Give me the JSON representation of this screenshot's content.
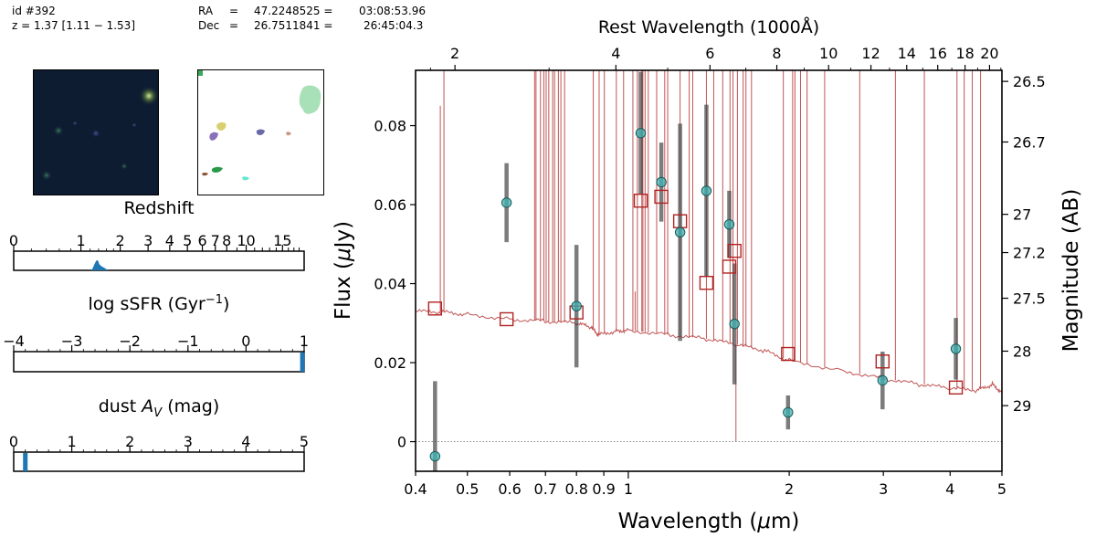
{
  "header": {
    "id_line": "id #392",
    "z_line": "z = 1.37 [1.11 − 1.53]",
    "ra_label": "RA",
    "ra_eq": "=",
    "ra_deg": "47.2248525 =",
    "ra_hms": "03:08:53.96",
    "dec_label": "Dec",
    "dec_eq": "=",
    "dec_deg": "26.7511841 =",
    "dec_dms": "26:45:04.3"
  },
  "thumbnails": {
    "image": {
      "background": "#0c1a30"
    },
    "segmentation": {
      "background": "#ffffff"
    }
  },
  "posteriors": [
    {
      "title": "Redshift",
      "scale": "log(1+z)",
      "ticks": [
        "0",
        "1",
        "2",
        "3",
        "4",
        "5",
        "6",
        "7",
        "8",
        "10",
        "15"
      ],
      "tick_values": [
        0,
        1,
        2,
        3,
        4,
        5,
        6,
        7,
        8,
        10,
        15
      ],
      "minor_values": [
        9,
        11,
        12,
        13,
        14,
        16,
        17,
        18
      ],
      "range": [
        0,
        19
      ],
      "peak": 1.37,
      "color": "#1f77b4"
    },
    {
      "title": "log sSFR (Gyr",
      "title_sup": "−1",
      "title_close": ")",
      "scale": "linear",
      "ticks": [
        "−4",
        "−3",
        "−2",
        "−1",
        "0",
        "1"
      ],
      "tick_values": [
        -4,
        -3,
        -2,
        -1,
        0,
        1
      ],
      "range": [
        -4,
        1
      ],
      "peak": 0.97,
      "color": "#1f77b4"
    },
    {
      "title": "dust ",
      "title_italic": "A",
      "title_sub": "V",
      "title_close": " (mag)",
      "scale": "linear",
      "ticks": [
        "0",
        "1",
        "2",
        "3",
        "4",
        "5"
      ],
      "tick_values": [
        0,
        1,
        2,
        3,
        4,
        5
      ],
      "range": [
        0,
        5
      ],
      "peak": 0.2,
      "color": "#1f77b4"
    }
  ],
  "chart_data": {
    "type": "scatter",
    "xlabel_text": "Wavelength (",
    "xlabel_unit": "μ",
    "xlabel_end": "m)",
    "ylabel_text": "Flux (",
    "ylabel_unit": "μ",
    "ylabel_end": "Jy)",
    "y2label": "Magnitude (AB)",
    "top_label": "Rest Wavelength (1000Å)",
    "x_scale": "log",
    "xlim": [
      0.4,
      5.0
    ],
    "ylim": [
      -0.0075,
      0.094
    ],
    "x_ticks": [
      0.4,
      0.5,
      0.6,
      0.7,
      0.8,
      0.9,
      1,
      2,
      3,
      4,
      5
    ],
    "x_tick_labels": [
      "0.4",
      "0.5",
      "0.6",
      "0.7",
      "0.8",
      "0.9",
      "1",
      "2",
      "3",
      "4",
      "5"
    ],
    "y_ticks": [
      0,
      0.02,
      0.04,
      0.06,
      0.08
    ],
    "y_tick_labels": [
      "0",
      "0.02",
      "0.04",
      "0.06",
      "0.08"
    ],
    "top_ticks": [
      2,
      4,
      6,
      8,
      10,
      12,
      14,
      16,
      18,
      20
    ],
    "top_tick_labels": [
      "2",
      "4",
      "6",
      "8",
      "10",
      "12",
      "14",
      "16",
      "18",
      "20"
    ],
    "mag_ticks": [
      26.5,
      26.7,
      27,
      27.2,
      27.5,
      28,
      29
    ],
    "mag_tick_labels": [
      "26.5",
      "26.7",
      "27",
      "27.2",
      "27.5",
      "28",
      "29"
    ],
    "redshift": 1.37,
    "observed": {
      "name": "",
      "color": "#40b0b0",
      "points": [
        {
          "x": 0.435,
          "y": -0.0037,
          "err": 0.019
        },
        {
          "x": 0.592,
          "y": 0.0605,
          "err": 0.01
        },
        {
          "x": 0.8,
          "y": 0.0343,
          "err": 0.0155
        },
        {
          "x": 1.055,
          "y": 0.0781,
          "err": 0.0155
        },
        {
          "x": 1.153,
          "y": 0.0657,
          "err": 0.01
        },
        {
          "x": 1.25,
          "y": 0.053,
          "err": 0.0275
        },
        {
          "x": 1.4,
          "y": 0.0635,
          "err": 0.0218
        },
        {
          "x": 1.545,
          "y": 0.055,
          "err": 0.0085
        },
        {
          "x": 1.58,
          "y": 0.0298,
          "err": 0.0153
        },
        {
          "x": 1.99,
          "y": 0.0074,
          "err": 0.0043
        },
        {
          "x": 2.99,
          "y": 0.0155,
          "err": 0.0073
        },
        {
          "x": 4.1,
          "y": 0.0235,
          "err": 0.0078
        }
      ]
    },
    "model_photometry": {
      "name": "",
      "color": "#b22222",
      "points": [
        {
          "x": 0.435,
          "y": 0.0337
        },
        {
          "x": 0.592,
          "y": 0.031
        },
        {
          "x": 0.8,
          "y": 0.0327
        },
        {
          "x": 1.055,
          "y": 0.061
        },
        {
          "x": 1.153,
          "y": 0.062
        },
        {
          "x": 1.25,
          "y": 0.0558
        },
        {
          "x": 1.4,
          "y": 0.0402
        },
        {
          "x": 1.545,
          "y": 0.0443
        },
        {
          "x": 1.58,
          "y": 0.0483
        },
        {
          "x": 1.99,
          "y": 0.0222
        },
        {
          "x": 2.99,
          "y": 0.0203
        },
        {
          "x": 4.1,
          "y": 0.0137
        }
      ]
    },
    "model_spectrum": {
      "name": "",
      "color": "#c05555",
      "continuum": [
        {
          "x": 0.4,
          "y": 0.033
        },
        {
          "x": 0.45,
          "y": 0.0328
        },
        {
          "x": 0.5,
          "y": 0.0322
        },
        {
          "x": 0.6,
          "y": 0.031
        },
        {
          "x": 0.7,
          "y": 0.0305
        },
        {
          "x": 0.8,
          "y": 0.03
        },
        {
          "x": 0.85,
          "y": 0.029
        },
        {
          "x": 0.88,
          "y": 0.027
        },
        {
          "x": 0.95,
          "y": 0.028
        },
        {
          "x": 1.0,
          "y": 0.0282
        },
        {
          "x": 1.2,
          "y": 0.027
        },
        {
          "x": 1.4,
          "y": 0.026
        },
        {
          "x": 1.6,
          "y": 0.0245
        },
        {
          "x": 1.8,
          "y": 0.023
        },
        {
          "x": 2.0,
          "y": 0.0205
        },
        {
          "x": 2.5,
          "y": 0.018
        },
        {
          "x": 3.0,
          "y": 0.016
        },
        {
          "x": 3.5,
          "y": 0.0145
        },
        {
          "x": 4.0,
          "y": 0.0135
        },
        {
          "x": 4.5,
          "y": 0.013
        },
        {
          "x": 4.8,
          "y": 0.0145
        },
        {
          "x": 5.0,
          "y": 0.0125
        }
      ],
      "emission_lines": [
        0.452,
        0.668,
        0.672,
        0.685,
        0.695,
        0.702,
        0.71,
        0.722,
        0.728,
        0.74,
        0.748,
        0.76,
        0.86,
        0.882,
        0.902,
        0.95,
        0.98,
        1.02,
        1.04,
        1.06,
        1.065,
        1.075,
        1.09,
        1.13,
        1.17,
        1.185,
        1.25,
        1.3,
        1.32,
        1.4,
        1.445,
        1.502,
        1.55,
        1.57,
        1.6,
        1.64,
        1.66,
        1.7,
        1.95,
        2.03,
        2.05,
        2.1,
        2.16,
        2.33,
        2.71,
        3.16,
        3.58,
        4.12,
        4.25,
        4.4,
        4.56
      ],
      "short_lines": [
        {
          "x": 0.445,
          "y": 0.085
        },
        {
          "x": 1.03,
          "y": 0.038
        },
        {
          "x": 1.59,
          "y": 0.0
        }
      ]
    }
  }
}
